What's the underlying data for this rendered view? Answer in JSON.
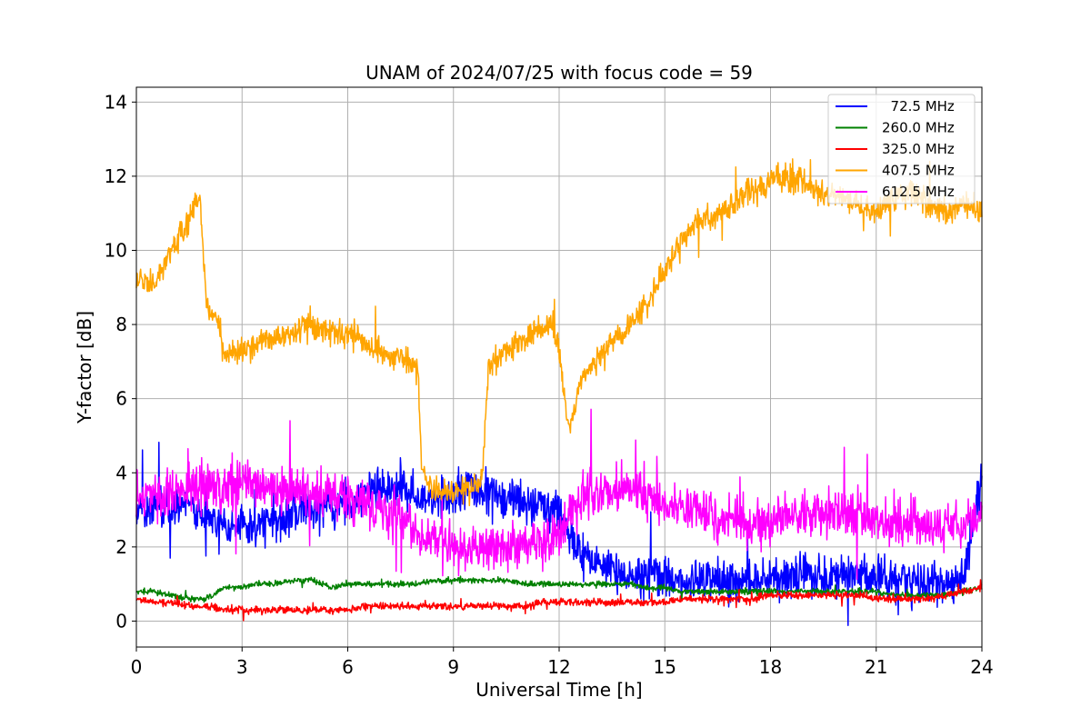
{
  "chart_data": {
    "type": "line",
    "title": "UNAM of 2024/07/25 with focus code = 59",
    "xlabel": "Universal Time [h]",
    "ylabel": "Y-factor [dB]",
    "xlim": [
      0,
      24
    ],
    "ylim": [
      -0.7,
      14.4
    ],
    "xticks": [
      0,
      3,
      6,
      9,
      12,
      15,
      18,
      21,
      24
    ],
    "yticks": [
      0,
      2,
      4,
      6,
      8,
      10,
      12,
      14
    ],
    "grid": true,
    "legend_position": "top-right",
    "series": [
      {
        "name": "  72.5 MHz",
        "color": "#0000ff",
        "x": [
          0,
          0.5,
          1,
          1.5,
          2,
          2.5,
          3,
          3.5,
          4,
          4.5,
          5,
          5.5,
          6,
          6.5,
          7,
          7.5,
          8,
          8.5,
          9,
          9.5,
          9.9,
          10.5,
          11,
          11.5,
          12,
          12.5,
          13,
          13.5,
          14,
          14.5,
          15,
          15.5,
          16,
          16.5,
          17,
          17.5,
          18,
          18.5,
          19,
          19.5,
          20,
          20.5,
          21,
          21.5,
          22,
          22.5,
          23,
          23.5,
          24
        ],
        "y": [
          3.0,
          3.1,
          3.0,
          3.2,
          2.8,
          2.6,
          2.5,
          2.6,
          2.7,
          2.9,
          3.0,
          3.1,
          3.2,
          3.4,
          3.5,
          3.6,
          3.4,
          3.3,
          3.4,
          3.5,
          3.5,
          3.3,
          3.2,
          3.1,
          3.0,
          2.0,
          1.5,
          1.3,
          1.2,
          1.2,
          1.2,
          1.1,
          1.1,
          1.1,
          1.1,
          1.1,
          1.1,
          1.2,
          1.2,
          1.2,
          1.2,
          1.2,
          1.1,
          1.1,
          1.1,
          1.0,
          1.0,
          1.2,
          4.0
        ],
        "noise": 0.9
      },
      {
        "name": "260.0 MHz",
        "color": "#008000",
        "x": [
          0,
          0.5,
          1,
          1.5,
          2,
          2.5,
          3,
          3.5,
          4,
          4.5,
          5,
          5.5,
          6,
          6.5,
          7,
          7.5,
          8,
          8.5,
          9,
          9.5,
          10,
          10.5,
          11,
          11.5,
          12,
          12.5,
          13,
          13.5,
          14,
          14.5,
          15,
          15.5,
          16,
          16.5,
          17,
          17.5,
          18,
          18.5,
          19,
          19.5,
          20,
          20.5,
          21,
          21.5,
          22,
          22.5,
          23,
          23.5,
          24
        ],
        "y": [
          0.8,
          0.8,
          0.7,
          0.6,
          0.6,
          0.9,
          0.9,
          1.0,
          1.0,
          1.1,
          1.1,
          0.9,
          1.0,
          1.0,
          1.0,
          1.0,
          1.0,
          1.1,
          1.1,
          1.1,
          1.1,
          1.1,
          1.0,
          1.0,
          1.0,
          1.0,
          1.0,
          1.0,
          1.0,
          0.9,
          0.9,
          0.8,
          0.8,
          0.8,
          0.8,
          0.8,
          0.8,
          0.8,
          0.8,
          0.8,
          0.8,
          0.8,
          0.8,
          0.7,
          0.7,
          0.7,
          0.7,
          0.8,
          0.9
        ],
        "noise": 0.12
      },
      {
        "name": "325.0 MHz",
        "color": "#ff0000",
        "x": [
          0,
          0.5,
          1,
          1.5,
          2,
          2.5,
          3,
          3.5,
          4,
          4.5,
          5,
          5.5,
          6,
          6.5,
          7,
          7.5,
          8,
          8.5,
          9,
          9.5,
          10,
          10.5,
          11,
          11.5,
          12,
          12.5,
          13,
          13.5,
          14,
          14.5,
          15,
          15.5,
          16,
          16.5,
          17,
          17.5,
          18,
          18.5,
          19,
          19.5,
          20,
          20.5,
          21,
          21.5,
          22,
          22.5,
          23,
          23.5,
          24
        ],
        "y": [
          0.6,
          0.5,
          0.5,
          0.4,
          0.4,
          0.3,
          0.3,
          0.3,
          0.3,
          0.3,
          0.3,
          0.3,
          0.3,
          0.4,
          0.4,
          0.4,
          0.4,
          0.4,
          0.4,
          0.4,
          0.4,
          0.4,
          0.4,
          0.5,
          0.5,
          0.5,
          0.5,
          0.5,
          0.5,
          0.5,
          0.5,
          0.6,
          0.6,
          0.6,
          0.6,
          0.6,
          0.7,
          0.7,
          0.7,
          0.7,
          0.7,
          0.7,
          0.6,
          0.6,
          0.6,
          0.6,
          0.7,
          0.8,
          0.9
        ],
        "noise": 0.15
      },
      {
        "name": "407.5 MHz",
        "color": "#ffa500",
        "x": [
          0,
          0.5,
          1,
          1.3,
          1.8,
          2.0,
          2.3,
          2.5,
          3,
          3.5,
          4,
          4.5,
          5,
          5.5,
          6,
          6.5,
          7,
          7.5,
          8.0,
          8.1,
          8.5,
          9.0,
          9.5,
          9.8,
          10,
          10.5,
          11,
          11.5,
          11.8,
          12.0,
          12.3,
          12.6,
          13,
          13.5,
          14,
          14.5,
          15,
          15.5,
          16,
          16.5,
          17,
          17.5,
          18,
          18.5,
          19,
          19.5,
          20,
          20.5,
          21,
          21.5,
          22,
          22.5,
          23,
          23.5,
          24
        ],
        "y": [
          9.2,
          9.0,
          10.0,
          10.5,
          11.5,
          8.5,
          8.2,
          7.2,
          7.3,
          7.5,
          7.6,
          7.8,
          8.0,
          7.8,
          7.8,
          7.5,
          7.2,
          7.1,
          6.8,
          4.0,
          3.5,
          3.5,
          3.6,
          3.8,
          6.8,
          7.3,
          7.6,
          7.9,
          8.0,
          7.3,
          5.0,
          6.5,
          7.0,
          7.5,
          8.0,
          8.5,
          9.5,
          10.3,
          10.8,
          11.0,
          11.3,
          11.6,
          11.9,
          12.0,
          11.8,
          11.5,
          11.5,
          11.2,
          11.0,
          11.4,
          11.6,
          11.2,
          11.0,
          11.3,
          11.0
        ],
        "noise": 0.55
      },
      {
        "name": "612.5 MHz",
        "color": "#ff00ff",
        "x": [
          0,
          0.5,
          1,
          1.5,
          2,
          2.5,
          3,
          3.5,
          4,
          4.5,
          5,
          5.5,
          6,
          6.5,
          7,
          7.5,
          8,
          8.5,
          9,
          9.5,
          10,
          10.5,
          11,
          11.5,
          12,
          12.5,
          13,
          13.5,
          14,
          14.5,
          15,
          15.5,
          16,
          16.5,
          17,
          17.5,
          18,
          18.5,
          19,
          19.5,
          20,
          20.5,
          21,
          21.5,
          22,
          22.5,
          23,
          23.5,
          24
        ],
        "y": [
          3.3,
          3.4,
          3.4,
          3.5,
          3.6,
          3.7,
          3.8,
          3.7,
          3.6,
          3.5,
          3.4,
          3.4,
          3.3,
          3.2,
          3.0,
          2.8,
          2.3,
          2.1,
          2.0,
          2.0,
          2.0,
          2.0,
          2.0,
          2.1,
          2.3,
          3.3,
          3.5,
          3.6,
          3.6,
          3.4,
          3.2,
          3.0,
          2.9,
          2.8,
          2.7,
          2.7,
          2.8,
          2.9,
          2.9,
          2.9,
          2.9,
          2.8,
          2.7,
          2.6,
          2.6,
          2.5,
          2.5,
          2.6,
          2.8
        ],
        "noise": 1.0
      }
    ]
  }
}
